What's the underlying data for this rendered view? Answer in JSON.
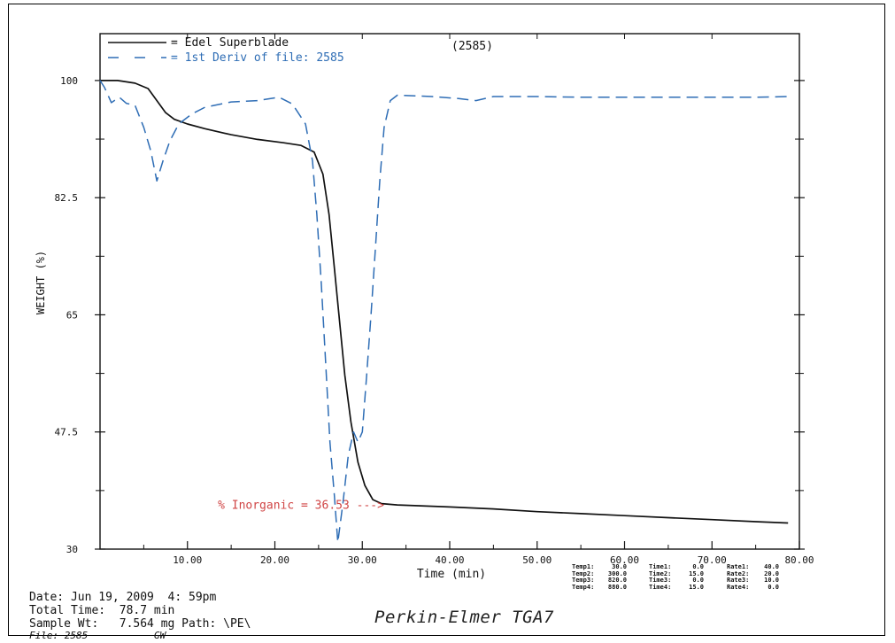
{
  "chart_data": {
    "type": "line",
    "xlabel": "Time (min)",
    "ylabel": "WEIGHT (%)",
    "xlim": [
      0,
      80
    ],
    "ylim": [
      30,
      107
    ],
    "x_ticks": [
      "10.00",
      "20.00",
      "30.00",
      "40.00",
      "50.00",
      "60.00",
      "70.00",
      "80.00"
    ],
    "y_ticks": [
      "30",
      "47.5",
      "65",
      "82.5",
      "100"
    ],
    "legend_placement": "top-left",
    "series": [
      {
        "name": "Edel Superblade",
        "legend_label": "= Edel Superblade",
        "style": "solid",
        "color": "#111111",
        "points": [
          [
            0,
            100.0
          ],
          [
            2,
            100.0
          ],
          [
            4,
            99.6
          ],
          [
            5.5,
            98.8
          ],
          [
            6.5,
            97.0
          ],
          [
            7.5,
            95.2
          ],
          [
            8.5,
            94.2
          ],
          [
            10,
            93.5
          ],
          [
            12,
            92.8
          ],
          [
            15,
            91.9
          ],
          [
            18,
            91.2
          ],
          [
            21,
            90.7
          ],
          [
            23,
            90.3
          ],
          [
            24.5,
            89.3
          ],
          [
            25.5,
            86.0
          ],
          [
            26.2,
            80.0
          ],
          [
            26.8,
            72.0
          ],
          [
            27.4,
            64.0
          ],
          [
            28,
            56.0
          ],
          [
            28.7,
            49.0
          ],
          [
            29.5,
            43.0
          ],
          [
            30.3,
            39.5
          ],
          [
            31.2,
            37.4
          ],
          [
            32.2,
            36.8
          ],
          [
            34,
            36.6
          ],
          [
            40,
            36.3
          ],
          [
            45,
            36.0
          ],
          [
            50,
            35.6
          ],
          [
            55,
            35.3
          ],
          [
            60,
            35.0
          ],
          [
            65,
            34.7
          ],
          [
            70,
            34.4
          ],
          [
            75,
            34.1
          ],
          [
            78.7,
            33.9
          ]
        ]
      },
      {
        "name": "1st Deriv of file: 2585",
        "legend_label": "= 1st Deriv of file: 2585",
        "style": "dashed",
        "color": "#2e6db5",
        "points": [
          [
            0,
            100.0
          ],
          [
            0.5,
            99.0
          ],
          [
            1.3,
            96.7
          ],
          [
            2.2,
            97.5
          ],
          [
            3.0,
            96.6
          ],
          [
            4.0,
            96.3
          ],
          [
            5.0,
            93.0
          ],
          [
            5.8,
            89.5
          ],
          [
            6.5,
            85.0
          ],
          [
            7.2,
            88.0
          ],
          [
            8.0,
            91.0
          ],
          [
            9.0,
            93.5
          ],
          [
            10.5,
            95.0
          ],
          [
            12,
            96.0
          ],
          [
            15,
            96.8
          ],
          [
            18,
            97.0
          ],
          [
            20.5,
            97.5
          ],
          [
            22,
            96.5
          ],
          [
            23.5,
            93.5
          ],
          [
            24.3,
            88.0
          ],
          [
            24.8,
            80.0
          ],
          [
            25.3,
            70.0
          ],
          [
            25.8,
            58.0
          ],
          [
            26.3,
            46.0
          ],
          [
            26.8,
            38.0
          ],
          [
            27.2,
            31.0
          ],
          [
            27.8,
            37.0
          ],
          [
            28.4,
            44.0
          ],
          [
            29.0,
            47.5
          ],
          [
            29.5,
            46.0
          ],
          [
            30.0,
            47.5
          ],
          [
            30.5,
            56.0
          ],
          [
            31.0,
            65.0
          ],
          [
            31.5,
            75.0
          ],
          [
            32.0,
            85.0
          ],
          [
            32.5,
            93.0
          ],
          [
            33.2,
            97.0
          ],
          [
            34,
            97.8
          ],
          [
            38,
            97.6
          ],
          [
            41,
            97.3
          ],
          [
            43,
            97.0
          ],
          [
            45,
            97.6
          ],
          [
            50,
            97.6
          ],
          [
            55,
            97.5
          ],
          [
            60,
            97.5
          ],
          [
            65,
            97.5
          ],
          [
            70,
            97.5
          ],
          [
            75,
            97.5
          ],
          [
            78.7,
            97.6
          ]
        ]
      }
    ],
    "run_id": "(2585)",
    "annotations": [
      {
        "text": "% Inorganic = 36.53 --->",
        "x": 32.5,
        "y": 36.53,
        "color": "#d04545"
      }
    ]
  },
  "info": {
    "date_line": "Date: Jun 19, 2009  4: 59pm",
    "total_time_line": "Total Time:  78.7 min",
    "sample_line": "Sample Wt:   7.564 mg Path: \\PE\\",
    "file_label": "File: 2585",
    "file_initials": "GW"
  },
  "program": [
    {
      "temp": "Temp1:",
      "temp_val": "30.0",
      "time": "Time1:",
      "time_val": "0.0",
      "rate": "Rate1:",
      "rate_val": "40.0"
    },
    {
      "temp": "Temp2:",
      "temp_val": "300.0",
      "time": "Time2:",
      "time_val": "15.0",
      "rate": "Rate2:",
      "rate_val": "20.0"
    },
    {
      "temp": "Temp3:",
      "temp_val": "820.0",
      "time": "Time3:",
      "time_val": "0.0",
      "rate": "Rate3:",
      "rate_val": "10.0"
    },
    {
      "temp": "Temp4:",
      "temp_val": "880.0",
      "time": "Time4:",
      "time_val": "15.0",
      "rate": "Rate4:",
      "rate_val": "0.0"
    }
  ],
  "footer_title": "Perkin-Elmer TGA7"
}
